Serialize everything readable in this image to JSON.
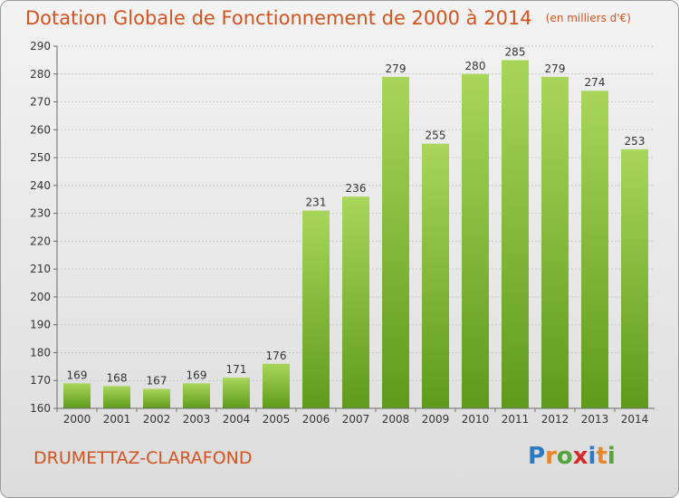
{
  "header": {
    "title": "Dotation Globale de Fonctionnement de 2000 à 2014",
    "unit": "(en milliers d'€)"
  },
  "footer": {
    "commune": "DRUMETTAZ-CLARAFOND",
    "logo": [
      "P",
      "r",
      "o",
      "x",
      "i",
      "t",
      "i"
    ],
    "logo_colors": [
      "#2a7bc4",
      "#e8862b",
      "#53a43a",
      "#d62b2b",
      "#2a7bc4",
      "#e8862b",
      "#53a43a"
    ]
  },
  "colors": {
    "bar_top": "#a8d65a",
    "bar_bottom": "#5f9a1c",
    "title": "#d2531f",
    "grid": "#c8c8c8",
    "axis": "#6a6a6a",
    "text": "#333333"
  },
  "chart_data": {
    "type": "bar",
    "title": "Dotation Globale de Fonctionnement de 2000 à 2014",
    "subtitle": "(en milliers d'€)",
    "xlabel": "",
    "ylabel": "",
    "categories": [
      "2000",
      "2001",
      "2002",
      "2003",
      "2004",
      "2005",
      "2006",
      "2007",
      "2008",
      "2009",
      "2010",
      "2011",
      "2012",
      "2013",
      "2014"
    ],
    "values": [
      169,
      168,
      167,
      169,
      171,
      176,
      231,
      236,
      279,
      255,
      280,
      285,
      279,
      274,
      253
    ],
    "ylim": [
      160,
      290
    ],
    "yticks": [
      160,
      170,
      180,
      190,
      200,
      210,
      220,
      230,
      240,
      250,
      260,
      270,
      280,
      290
    ],
    "grid": true,
    "data_labels": true
  }
}
